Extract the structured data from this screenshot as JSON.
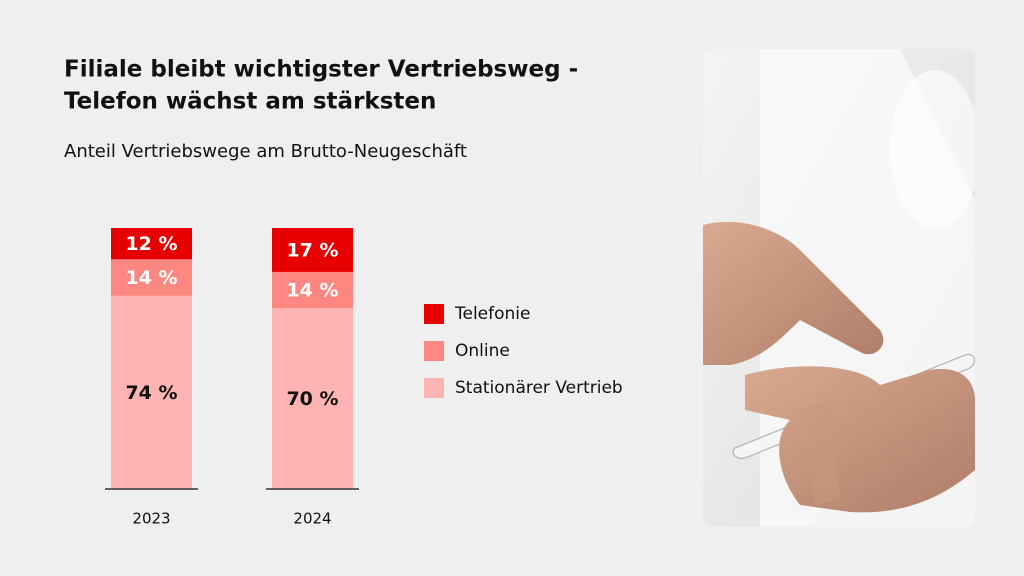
{
  "chart_data": {
    "type": "stacked-bar",
    "title": [
      "Filiale bleibt wichtigster Vertriebsweg -",
      "Telefon wächst am stärksten"
    ],
    "subtitle": "Anteil Vertriebswege am Brutto-Neugeschäft",
    "categories": [
      "2023",
      "2024"
    ],
    "series": [
      {
        "name": "Telefonie",
        "color": "#e60000",
        "label_color": "#ffffff",
        "values": [
          12,
          17
        ],
        "value_labels": [
          "12 %",
          "17 %"
        ]
      },
      {
        "name": "Online",
        "color": "#ff8782",
        "label_color": "#ffffff",
        "values": [
          14,
          14
        ],
        "value_labels": [
          "14 %",
          "14 %"
        ]
      },
      {
        "name": "Stationärer Vertrieb",
        "color": "#ffb4b4",
        "label_color": "#111111",
        "values": [
          74,
          70
        ],
        "value_labels": [
          "74 %",
          "70 %"
        ]
      }
    ]
  }
}
